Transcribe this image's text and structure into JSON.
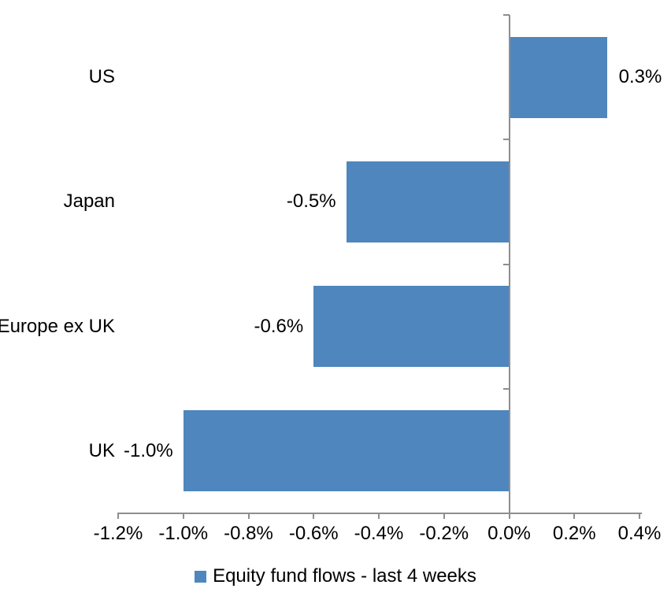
{
  "chart_data": {
    "type": "bar",
    "orientation": "horizontal",
    "title": "",
    "categories": [
      "US",
      "Japan",
      "Europe ex UK",
      "UK"
    ],
    "values": [
      0.3,
      -0.5,
      -0.6,
      -1.0
    ],
    "data_labels": [
      "0.3%",
      "-0.5%",
      "-0.6%",
      "-1.0%"
    ],
    "series_name": "Equity fund flows - last 4 weeks",
    "xlabel": "",
    "ylabel": "",
    "xlim": [
      -1.2,
      0.4
    ],
    "x_ticks": [
      -1.2,
      -1.0,
      -0.8,
      -0.6,
      -0.4,
      -0.2,
      0.0,
      0.2,
      0.4
    ],
    "x_tick_labels": [
      "-1.2%",
      "-1.0%",
      "-0.8%",
      "-0.6%",
      "-0.4%",
      "-0.2%",
      "0.0%",
      "0.2%",
      "0.4%"
    ],
    "grid": false,
    "legend_position": "bottom",
    "bar_color": "#4e86bd",
    "axis_color": "#8e8e8e",
    "text_color": "#000000"
  }
}
